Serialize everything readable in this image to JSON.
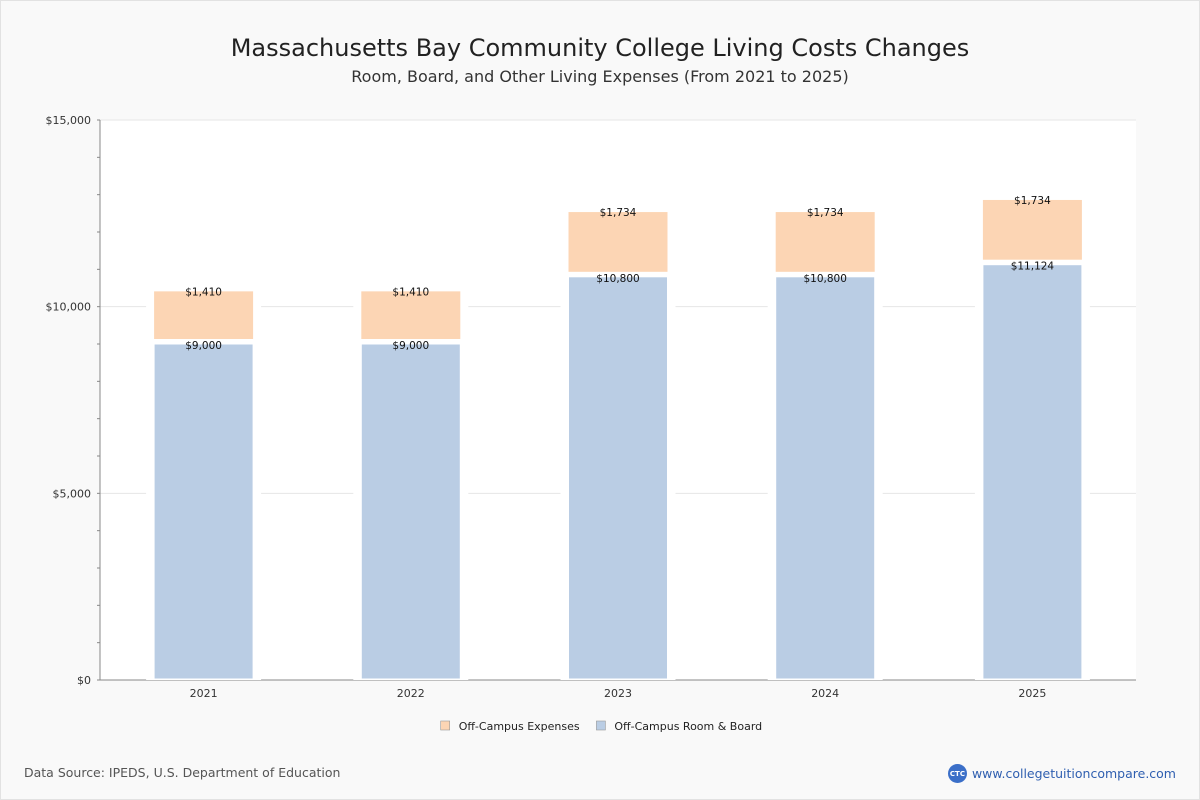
{
  "chart_data": {
    "type": "bar",
    "stacked": true,
    "title": "Massachusetts Bay Community College Living Costs Changes",
    "subtitle": "Room, Board, and Other Living Expenses (From 2021 to 2025)",
    "categories": [
      "2021",
      "2022",
      "2023",
      "2024",
      "2025"
    ],
    "series": [
      {
        "name": "Off-Campus Room & Board",
        "color": "#bacde4",
        "values": [
          9000,
          9000,
          10800,
          10800,
          11124
        ],
        "labels": [
          "$9,000",
          "$9,000",
          "$10,800",
          "$10,800",
          "$11,124"
        ]
      },
      {
        "name": "Off-Campus Expenses",
        "color": "#fcd5b4",
        "values": [
          1410,
          1410,
          1734,
          1734,
          1734
        ],
        "labels": [
          "$1,410",
          "$1,410",
          "$1,734",
          "$1,734",
          "$1,734"
        ]
      }
    ],
    "legend": [
      {
        "name": "Off-Campus Expenses",
        "color": "#fcd5b4"
      },
      {
        "name": "Off-Campus Room & Board",
        "color": "#bacde4"
      }
    ],
    "ylim": [
      0,
      15000
    ],
    "yticks": [
      0,
      5000,
      10000,
      15000
    ],
    "ytick_labels": [
      "$0",
      "$5,000",
      "$10,000",
      "$15,000"
    ],
    "xlabel": "",
    "ylabel": "",
    "grid": true,
    "legend_position": "bottom-center"
  },
  "footer": {
    "source": "Data Source: IPEDS, U.S. Department of Education",
    "brand_logo": "CTC",
    "brand_url": "www.collegetuitioncompare.com"
  }
}
